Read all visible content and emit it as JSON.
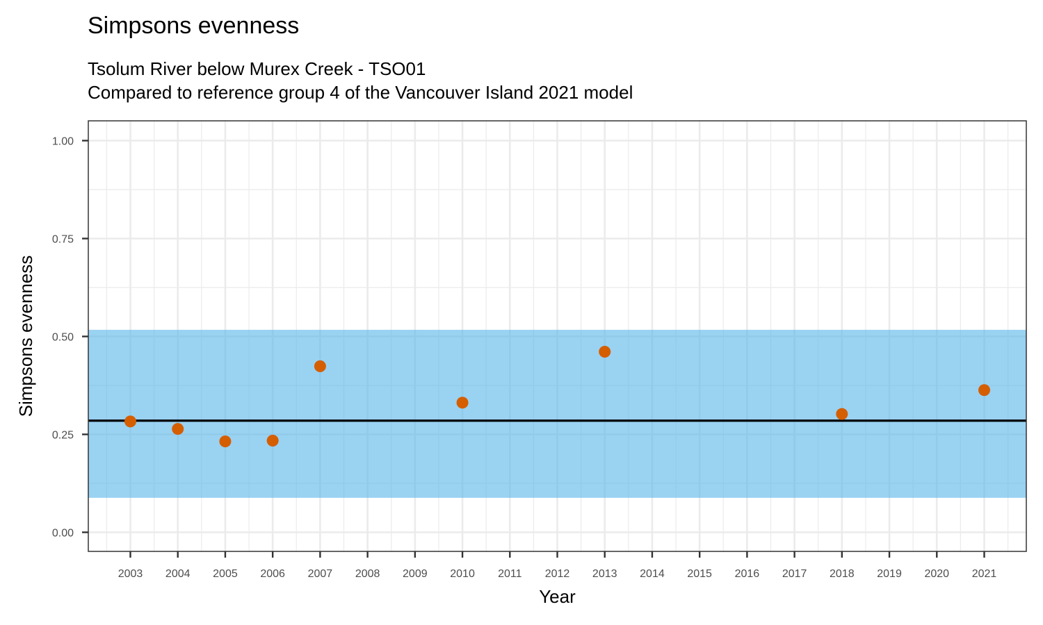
{
  "chart_data": {
    "type": "scatter",
    "title": "Simpsons evenness",
    "subtitle": [
      "Tsolum River below Murex Creek - TSO01",
      "Compared to reference group 4 of the Vancouver Island 2021 model"
    ],
    "xlabel": "Year",
    "ylabel": "Simpsons evenness",
    "x_ticks": [
      "2003",
      "2004",
      "2005",
      "2006",
      "2007",
      "2008",
      "2009",
      "2010",
      "2011",
      "2012",
      "2013",
      "2014",
      "2015",
      "2016",
      "2017",
      "2018",
      "2019",
      "2020",
      "2021"
    ],
    "y_ticks": [
      "0.00",
      "0.25",
      "0.50",
      "0.75",
      "1.00"
    ],
    "ylim": [
      0,
      1
    ],
    "xlim": [
      2003,
      2021
    ],
    "grid": true,
    "points": [
      {
        "x": 2003,
        "y": 0.283
      },
      {
        "x": 2004,
        "y": 0.264
      },
      {
        "x": 2005,
        "y": 0.232
      },
      {
        "x": 2006,
        "y": 0.234
      },
      {
        "x": 2007,
        "y": 0.424
      },
      {
        "x": 2010,
        "y": 0.331
      },
      {
        "x": 2013,
        "y": 0.461
      },
      {
        "x": 2018,
        "y": 0.302
      },
      {
        "x": 2021,
        "y": 0.363
      }
    ],
    "reference_line": 0.285,
    "reference_band": [
      0.088,
      0.517
    ],
    "colors": {
      "points": "#d55e00",
      "band": "#56b4e9",
      "line": "#000000",
      "grid": "#ebebeb",
      "panel_border": "#333333"
    }
  }
}
